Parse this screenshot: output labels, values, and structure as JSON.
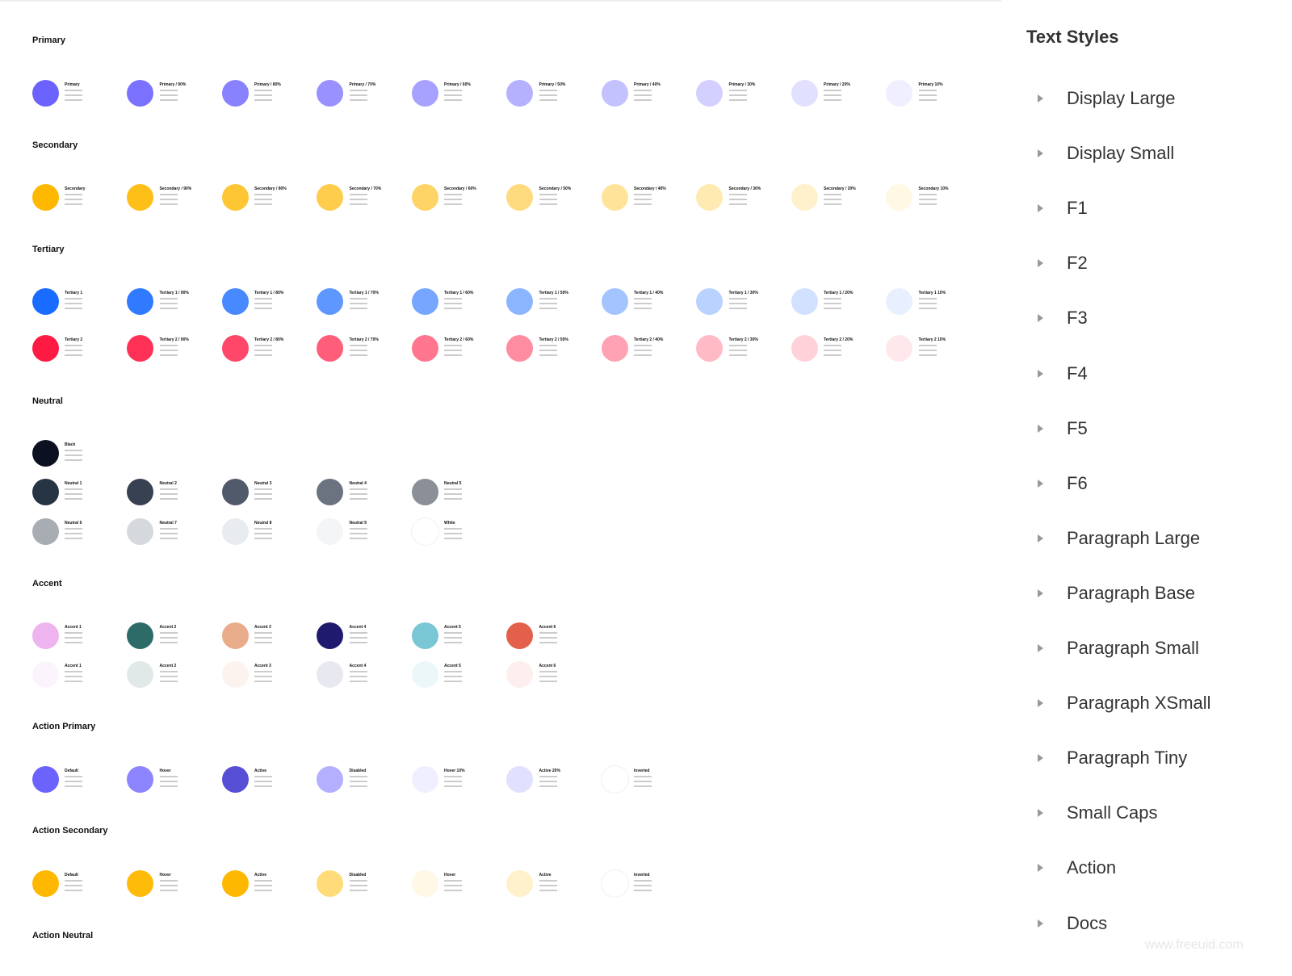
{
  "sections": [
    {
      "title": "Primary",
      "rows": [
        [
          {
            "name": "Primary",
            "color": "#6C63FF"
          },
          {
            "name": "Primary / 90%",
            "color": "#6C63FFE6"
          },
          {
            "name": "Primary / 80%",
            "color": "#6C63FFCC"
          },
          {
            "name": "Primary / 70%",
            "color": "#6C63FFB3"
          },
          {
            "name": "Primary / 60%",
            "color": "#6C63FF99"
          },
          {
            "name": "Primary / 50%",
            "color": "#6C63FF80"
          },
          {
            "name": "Primary / 40%",
            "color": "#6C63FF66"
          },
          {
            "name": "Primary / 30%",
            "color": "#6C63FF4D"
          },
          {
            "name": "Primary / 20%",
            "color": "#6C63FF33"
          },
          {
            "name": "Primary 10%",
            "color": "#6C63FF1A"
          }
        ]
      ]
    },
    {
      "title": "Secondary",
      "rows": [
        [
          {
            "name": "Secondary",
            "color": "#FFB800"
          },
          {
            "name": "Secondary / 90%",
            "color": "#FFB800E6"
          },
          {
            "name": "Secondary / 80%",
            "color": "#FFB800CC"
          },
          {
            "name": "Secondary / 70%",
            "color": "#FFB800B3"
          },
          {
            "name": "Secondary / 60%",
            "color": "#FFB80099"
          },
          {
            "name": "Secondary / 50%",
            "color": "#FFB80080"
          },
          {
            "name": "Secondary / 40%",
            "color": "#FFB80066"
          },
          {
            "name": "Secondary / 30%",
            "color": "#FFB8004D"
          },
          {
            "name": "Secondary / 20%",
            "color": "#FFB80033"
          },
          {
            "name": "Secondary 10%",
            "color": "#FFB8001A"
          }
        ]
      ]
    },
    {
      "title": "Tertiary",
      "rows": [
        [
          {
            "name": "Tertiary 1",
            "color": "#1A6BFF"
          },
          {
            "name": "Tertiary 1 / 90%",
            "color": "#1A6BFFE6"
          },
          {
            "name": "Tertiary 1 / 80%",
            "color": "#1A6BFFCC"
          },
          {
            "name": "Tertiary 1 / 70%",
            "color": "#1A6BFFB3"
          },
          {
            "name": "Tertiary 1 / 60%",
            "color": "#1A6BFF99"
          },
          {
            "name": "Tertiary 1 / 50%",
            "color": "#1A6BFF80"
          },
          {
            "name": "Tertiary 1 / 40%",
            "color": "#1A6BFF66"
          },
          {
            "name": "Tertiary 1 / 30%",
            "color": "#1A6BFF4D"
          },
          {
            "name": "Tertiary 1 / 20%",
            "color": "#1A6BFF33"
          },
          {
            "name": "Tertiary 1 10%",
            "color": "#1A6BFF1A"
          }
        ],
        [
          {
            "name": "Tertiary 2",
            "color": "#FF1A43"
          },
          {
            "name": "Tertiary 2 / 90%",
            "color": "#FF1A43E6"
          },
          {
            "name": "Tertiary 2 / 80%",
            "color": "#FF1A43CC"
          },
          {
            "name": "Tertiary 2 / 70%",
            "color": "#FF1A43B3"
          },
          {
            "name": "Tertiary 2 / 60%",
            "color": "#FF1A4399"
          },
          {
            "name": "Tertiary 2 / 50%",
            "color": "#FF1A4380"
          },
          {
            "name": "Tertiary 2 / 40%",
            "color": "#FF1A4366"
          },
          {
            "name": "Tertiary 2 / 30%",
            "color": "#FF1A434D"
          },
          {
            "name": "Tertiary 2 / 20%",
            "color": "#FF1A4333"
          },
          {
            "name": "Tertiary 2 10%",
            "color": "#FF1A431A"
          }
        ]
      ]
    },
    {
      "title": "Neutral",
      "rows": [
        [
          {
            "name": "Black",
            "color": "#0B1120"
          }
        ],
        [
          {
            "name": "Neutral 1",
            "color": "#273444"
          },
          {
            "name": "Neutral 2",
            "color": "#374151"
          },
          {
            "name": "Neutral 3",
            "color": "#515A6A"
          },
          {
            "name": "Neutral 4",
            "color": "#6B7280"
          },
          {
            "name": "Neutral 5",
            "color": "#8A8F98"
          }
        ],
        [
          {
            "name": "Neutral 6",
            "color": "#A8ADB4"
          },
          {
            "name": "Neutral 7",
            "color": "#D5D8DC"
          },
          {
            "name": "Neutral 8",
            "color": "#E8EBEF"
          },
          {
            "name": "Neutral 9",
            "color": "#F4F5F7"
          },
          {
            "name": "White",
            "color": "#FFFFFF"
          }
        ]
      ]
    },
    {
      "title": "Accent",
      "rows": [
        [
          {
            "name": "Accent 1",
            "color": "#EEB4F0"
          },
          {
            "name": "Accent 2",
            "color": "#2C6B67"
          },
          {
            "name": "Accent 3",
            "color": "#E9AC8B"
          },
          {
            "name": "Accent 4",
            "color": "#1F1A6E"
          },
          {
            "name": "Accent 5",
            "color": "#79C6D4"
          },
          {
            "name": "Accent 6",
            "color": "#E3604B"
          }
        ],
        [
          {
            "name": "Accent 1",
            "color": "#EEB4F026"
          },
          {
            "name": "Accent 2",
            "color": "#2C6B6726"
          },
          {
            "name": "Accent 3",
            "color": "#E9AC8B26"
          },
          {
            "name": "Accent 4",
            "color": "#1F1A6E1A"
          },
          {
            "name": "Accent 5",
            "color": "#79C6D426"
          },
          {
            "name": "Accent 6",
            "color": "#E3604B1A"
          }
        ]
      ]
    },
    {
      "title": "Action Primary",
      "rows": [
        [
          {
            "name": "Default",
            "color": "#6C63FF"
          },
          {
            "name": "Hover",
            "color": "#8D84FF"
          },
          {
            "name": "Active",
            "color": "#574ED6"
          },
          {
            "name": "Disabled",
            "color": "#B4AFFF"
          },
          {
            "name": "Hover 10%",
            "color": "#F0EFFF"
          },
          {
            "name": "Active 20%",
            "color": "#E2E0FF"
          },
          {
            "name": "Inverted",
            "color": "#FFFFFF"
          }
        ]
      ]
    },
    {
      "title": "Action Secondary",
      "rows": [
        [
          {
            "name": "Default",
            "color": "#FFB800"
          },
          {
            "name": "Hover",
            "color": "#FFBB0A"
          },
          {
            "name": "Active",
            "color": "#FFB800"
          },
          {
            "name": "Disabled",
            "color": "#FFDB7A"
          },
          {
            "name": "Hover",
            "color": "#FFF8E6"
          },
          {
            "name": "Active",
            "color": "#FFF1CC"
          },
          {
            "name": "Inverted",
            "color": "#FFFFFF"
          }
        ]
      ]
    },
    {
      "title": "Action Neutral",
      "rows": []
    }
  ],
  "sidebar": {
    "title": "Text Styles",
    "items": [
      "Display Large",
      "Display Small",
      "F1",
      "F2",
      "F3",
      "F4",
      "F5",
      "F6",
      "Paragraph Large",
      "Paragraph Base",
      "Paragraph Small",
      "Paragraph XSmall",
      "Paragraph Tiny",
      "Small Caps",
      "Action",
      "Docs"
    ]
  },
  "watermark": "www.freeuid.com"
}
